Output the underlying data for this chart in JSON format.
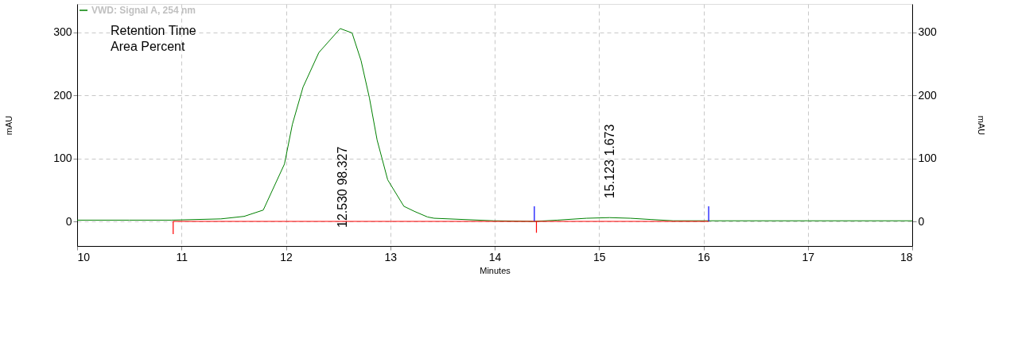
{
  "chart_data": {
    "type": "line",
    "xlabel": "Minutes",
    "ylabel": "mAU",
    "y2label": "mAU",
    "xlim": [
      10,
      18
    ],
    "xticks": [
      10,
      11,
      12,
      13,
      14,
      15,
      16,
      17,
      18
    ],
    "ylim": [
      -39,
      345
    ],
    "yticks": [
      0,
      100,
      200,
      300
    ],
    "y2lim": [
      -39,
      345
    ],
    "y2ticks": [
      0,
      100,
      200,
      300
    ],
    "grid": true,
    "legend": "top left",
    "line_style": "solid",
    "marker": "none",
    "series": [
      {
        "name": "VWD: Signal A, 254 nm",
        "color": "#008000",
        "x": [
          10,
          10.5,
          10.9,
          11.377,
          11.6,
          11.783,
          11.986,
          12.062,
          12.164,
          12.316,
          12.52,
          12.634,
          12.72,
          12.8,
          12.874,
          12.975,
          13.13,
          13.23,
          13.357,
          13.42,
          13.99,
          14.38,
          14.6,
          14.88,
          15.1,
          15.3,
          15.5,
          15.71,
          16.05,
          17,
          18
        ],
        "values": [
          2,
          2,
          2,
          4,
          8,
          18,
          91,
          154,
          213,
          268,
          306,
          299,
          255,
          196,
          129,
          66,
          24,
          16,
          7,
          5,
          1,
          0,
          2,
          5,
          6,
          5,
          3,
          1,
          1,
          1,
          1
        ]
      },
      {
        "color": "#ff0000",
        "axis": "y2",
        "x": [
          10.92,
          16.05
        ],
        "values": [
          0,
          0
        ]
      },
      {
        "color": "#ff0000",
        "x": [
          10.92,
          10.92
        ],
        "values": [
          0,
          -20
        ]
      },
      {
        "color": "#ff0000",
        "x": [
          14.4,
          14.4
        ],
        "values": [
          0,
          -18
        ]
      },
      {
        "color": "#0000ff",
        "x": [
          14.38,
          14.38
        ],
        "values": [
          0,
          24
        ]
      },
      {
        "color": "#0000ff",
        "x": [
          16.05,
          16.05
        ],
        "values": [
          0,
          24
        ]
      }
    ],
    "annotations": [
      "Retention Time",
      "Area Percent",
      "12.530  98.327",
      "15.123  1.673"
    ]
  }
}
